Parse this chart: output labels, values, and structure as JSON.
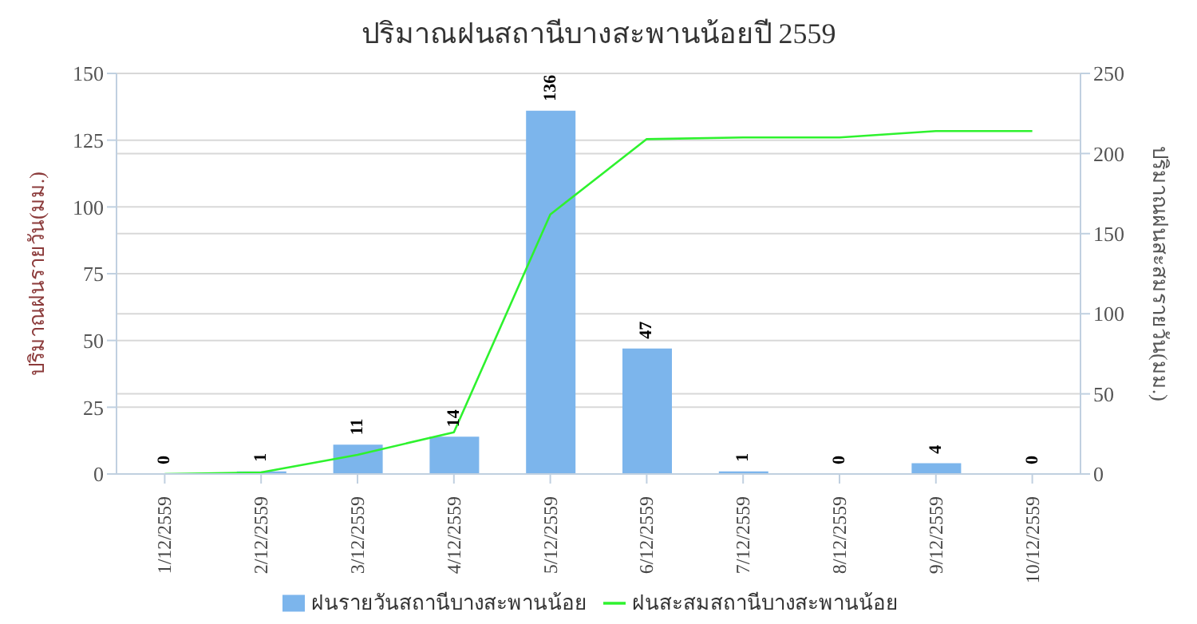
{
  "chart_data": {
    "type": "bar",
    "title": "ปริมาณฝนสถานีบางสะพานน้อยปี 2559",
    "ylabel": "ปริมาณฝนรายวัน(มม.)",
    "y2label": "ปริมาณฝนสะสมรายวัน(มม.)",
    "categories": [
      "1/12/2559",
      "2/12/2559",
      "3/12/2559",
      "4/12/2559",
      "5/12/2559",
      "6/12/2559",
      "7/12/2559",
      "8/12/2559",
      "9/12/2559",
      "10/12/2559"
    ],
    "series": [
      {
        "name": "ฝนรายวันสถานีบางสะพานน้อย",
        "color": "#7cb5ec",
        "values": [
          0,
          1,
          11,
          14,
          136,
          47,
          1,
          0,
          4,
          0
        ],
        "value_labels": [
          "0",
          "1",
          "11",
          "14",
          "136",
          "47",
          "1",
          "0",
          "4",
          "0"
        ]
      },
      {
        "name": "ฝนสะสมสถานีบางสะพานน้อย",
        "type": "line",
        "axis": "y2",
        "color": "#2ef22e",
        "values": [
          0,
          1,
          12,
          26,
          162,
          209,
          210,
          210,
          214,
          214
        ]
      }
    ],
    "ylim": [
      0,
      150
    ],
    "yticks": [
      0,
      25,
      50,
      75,
      100,
      125,
      150
    ],
    "y2lim": [
      0,
      250
    ],
    "y2ticks": [
      0,
      50,
      100,
      150,
      200,
      250
    ],
    "grid": "y",
    "legend": "bottom",
    "marker": "none",
    "line_style": "solid"
  }
}
